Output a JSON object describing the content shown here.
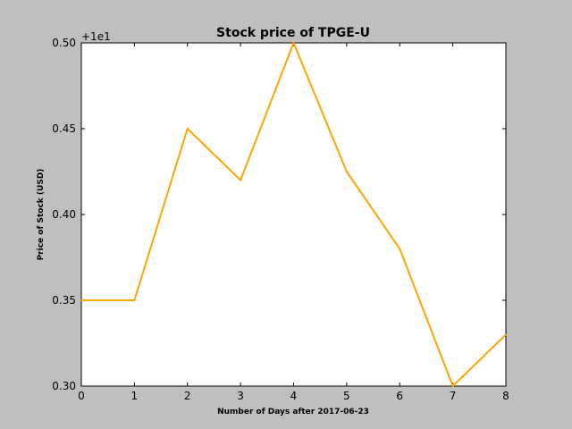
{
  "chart_data": {
    "type": "line",
    "title": "Stock price of TPGE-U",
    "xlabel": "Number of Days after 2017-06-23",
    "ylabel": "Price of Stock (USD)",
    "y_offset_label": "+1e1",
    "x": [
      0,
      1,
      2,
      3,
      4,
      5,
      6,
      7,
      8
    ],
    "xlim": [
      0,
      8
    ],
    "ylim": [
      10.3,
      10.5
    ],
    "x_ticks": [
      "0",
      "1",
      "2",
      "3",
      "4",
      "5",
      "6",
      "7",
      "8"
    ],
    "y_ticks": [
      "0.30",
      "0.35",
      "0.40",
      "0.45",
      "0.50"
    ],
    "y_tick_values": [
      10.3,
      10.35,
      10.4,
      10.45,
      10.5
    ],
    "series": [
      {
        "values": [
          10.35,
          10.35,
          10.45,
          10.42,
          10.5,
          10.425,
          10.38,
          10.3,
          10.33
        ],
        "color": "#ffa500"
      }
    ],
    "grid": false
  }
}
